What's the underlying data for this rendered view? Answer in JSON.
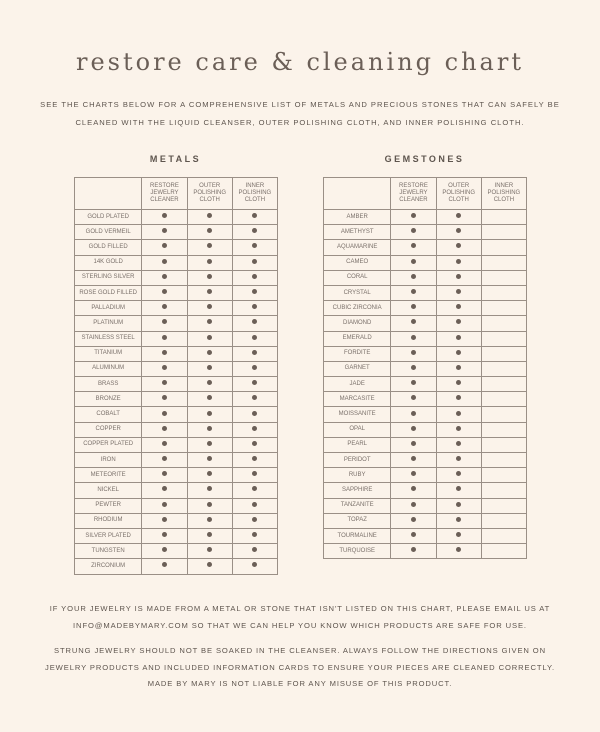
{
  "title": "restore care & cleaning chart",
  "intro": "SEE THE CHARTS BELOW FOR A COMPREHENSIVE LIST OF METALS AND PRECIOUS STONES THAT CAN SAFELY BE CLEANED WITH THE LIQUID CLEANSER, OUTER POLISHING CLOTH, AND INNER POLISHING CLOTH.",
  "columns": [
    "RESTORE JEWELRY CLEANER",
    "OUTER POLISHING CLOTH",
    "INNER POLISHING CLOTH"
  ],
  "metals": {
    "heading": "METALS",
    "rows": [
      {
        "name": "GOLD PLATED",
        "marks": [
          true,
          true,
          true
        ]
      },
      {
        "name": "GOLD VERMEIL",
        "marks": [
          true,
          true,
          true
        ]
      },
      {
        "name": "GOLD FILLED",
        "marks": [
          true,
          true,
          true
        ]
      },
      {
        "name": "14K GOLD",
        "marks": [
          true,
          true,
          true
        ]
      },
      {
        "name": "STERLING SILVER",
        "marks": [
          true,
          true,
          true
        ]
      },
      {
        "name": "ROSE GOLD FILLED",
        "marks": [
          true,
          true,
          true
        ]
      },
      {
        "name": "PALLADIUM",
        "marks": [
          true,
          true,
          true
        ]
      },
      {
        "name": "PLATINUM",
        "marks": [
          true,
          true,
          true
        ]
      },
      {
        "name": "STAINLESS STEEL",
        "marks": [
          true,
          true,
          true
        ]
      },
      {
        "name": "TITANIUM",
        "marks": [
          true,
          true,
          true
        ]
      },
      {
        "name": "ALUMINUM",
        "marks": [
          true,
          true,
          true
        ]
      },
      {
        "name": "BRASS",
        "marks": [
          true,
          true,
          true
        ]
      },
      {
        "name": "BRONZE",
        "marks": [
          true,
          true,
          true
        ]
      },
      {
        "name": "COBALT",
        "marks": [
          true,
          true,
          true
        ]
      },
      {
        "name": "COPPER",
        "marks": [
          true,
          true,
          true
        ]
      },
      {
        "name": "COPPER PLATED",
        "marks": [
          true,
          true,
          true
        ]
      },
      {
        "name": "IRON",
        "marks": [
          true,
          true,
          true
        ]
      },
      {
        "name": "METEORITE",
        "marks": [
          true,
          true,
          true
        ]
      },
      {
        "name": "NICKEL",
        "marks": [
          true,
          true,
          true
        ]
      },
      {
        "name": "PEWTER",
        "marks": [
          true,
          true,
          true
        ]
      },
      {
        "name": "RHODIUM",
        "marks": [
          true,
          true,
          true
        ]
      },
      {
        "name": "SILVER PLATED",
        "marks": [
          true,
          true,
          true
        ]
      },
      {
        "name": "TUNGSTEN",
        "marks": [
          true,
          true,
          true
        ]
      },
      {
        "name": "ZIRCONIUM",
        "marks": [
          true,
          true,
          true
        ]
      }
    ]
  },
  "gemstones": {
    "heading": "GEMSTONES",
    "rows": [
      {
        "name": "AMBER",
        "marks": [
          true,
          true,
          false
        ]
      },
      {
        "name": "AMETHYST",
        "marks": [
          true,
          true,
          false
        ]
      },
      {
        "name": "AQUAMARINE",
        "marks": [
          true,
          true,
          false
        ]
      },
      {
        "name": "CAMEO",
        "marks": [
          true,
          true,
          false
        ]
      },
      {
        "name": "CORAL",
        "marks": [
          true,
          true,
          false
        ]
      },
      {
        "name": "CRYSTAL",
        "marks": [
          true,
          true,
          false
        ]
      },
      {
        "name": "CUBIC ZIRCONIA",
        "marks": [
          true,
          true,
          false
        ]
      },
      {
        "name": "DIAMOND",
        "marks": [
          true,
          true,
          false
        ]
      },
      {
        "name": "EMERALD",
        "marks": [
          true,
          true,
          false
        ]
      },
      {
        "name": "FORDITE",
        "marks": [
          true,
          true,
          false
        ]
      },
      {
        "name": "GARNET",
        "marks": [
          true,
          true,
          false
        ]
      },
      {
        "name": "JADE",
        "marks": [
          true,
          true,
          false
        ]
      },
      {
        "name": "MARCASITE",
        "marks": [
          true,
          true,
          false
        ]
      },
      {
        "name": "MOISSANITE",
        "marks": [
          true,
          true,
          false
        ]
      },
      {
        "name": "OPAL",
        "marks": [
          true,
          true,
          false
        ]
      },
      {
        "name": "PEARL",
        "marks": [
          true,
          true,
          false
        ]
      },
      {
        "name": "PERIDOT",
        "marks": [
          true,
          true,
          false
        ]
      },
      {
        "name": "RUBY",
        "marks": [
          true,
          true,
          false
        ]
      },
      {
        "name": "SAPPHIRE",
        "marks": [
          true,
          true,
          false
        ]
      },
      {
        "name": "TANZANITE",
        "marks": [
          true,
          true,
          false
        ]
      },
      {
        "name": "TOPAZ",
        "marks": [
          true,
          true,
          false
        ]
      },
      {
        "name": "TOURMALINE",
        "marks": [
          true,
          true,
          false
        ]
      },
      {
        "name": "TURQUOISE",
        "marks": [
          true,
          true,
          false
        ]
      }
    ]
  },
  "footer": {
    "contact": "IF YOUR JEWELRY IS MADE FROM A METAL OR STONE THAT ISN'T LISTED ON THIS CHART, PLEASE EMAIL US AT INFO@MADEBYMARY.COM SO THAT WE CAN HELP YOU KNOW WHICH PRODUCTS ARE SAFE FOR USE.",
    "disclaimer": "STRUNG JEWELRY SHOULD NOT BE SOAKED IN THE CLEANSER. ALWAYS FOLLOW THE DIRECTIONS GIVEN ON JEWELRY PRODUCTS AND INCLUDED INFORMATION CARDS TO ENSURE YOUR PIECES ARE CLEANED CORRECTLY. MADE BY MARY IS NOT LIABLE FOR ANY MISUSE OF THIS PRODUCT."
  }
}
